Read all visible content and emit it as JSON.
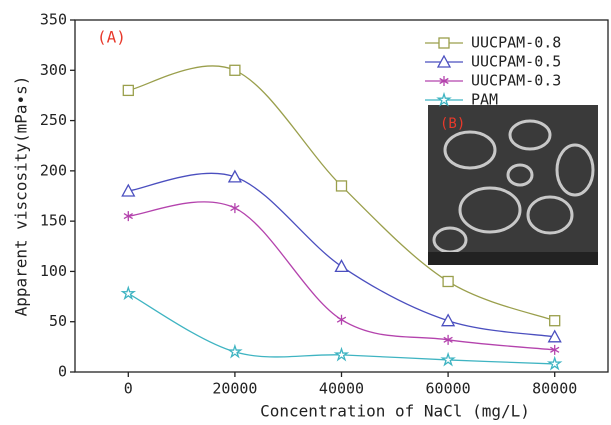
{
  "chart_data": {
    "type": "line",
    "x_label": "Concentration of NaCl  (mg/L)",
    "y_label": "Apparent viscosity(mPa•s)",
    "annotations": [
      "(A)",
      "(B)"
    ],
    "x": [
      0,
      20000,
      40000,
      60000,
      80000
    ],
    "series": [
      {
        "name": "UUCPAM-0.8",
        "color": "#9a9f4c",
        "marker": "square",
        "values": [
          280,
          300,
          185,
          90,
          51
        ]
      },
      {
        "name": "UUCPAM-0.5",
        "color": "#4b4fbf",
        "marker": "triangle",
        "values": [
          180,
          194,
          105,
          51,
          35
        ]
      },
      {
        "name": "UUCPAM-0.3",
        "color": "#b443ad",
        "marker": "asterisk",
        "values": [
          155,
          163,
          52,
          32,
          22
        ]
      },
      {
        "name": "PAM",
        "color": "#3fb4c2",
        "marker": "star",
        "values": [
          78,
          20,
          17,
          12,
          8
        ]
      }
    ],
    "xlim": [
      -10000,
      90000
    ],
    "xticks": [
      0,
      20000,
      40000,
      60000,
      80000
    ],
    "ylim": [
      0,
      350
    ],
    "yticks": [
      0,
      50,
      100,
      150,
      200,
      250,
      300,
      350
    ],
    "legend": "upper right"
  }
}
